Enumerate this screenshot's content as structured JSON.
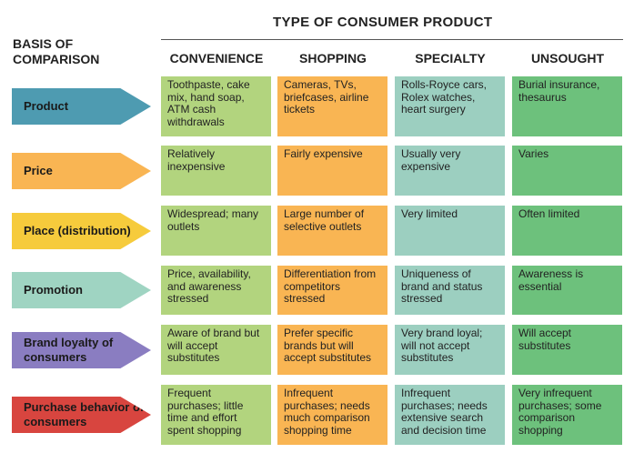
{
  "title": "TYPE OF CONSUMER PRODUCT",
  "basis_label": "BASIS OF COMPARISON",
  "columns": [
    {
      "label": "CONVENIENCE",
      "color": "#b2d47e"
    },
    {
      "label": "SHOPPING",
      "color": "#f9b553"
    },
    {
      "label": "SPECIALTY",
      "color": "#9ccfc0"
    },
    {
      "label": "UNSOUGHT",
      "color": "#6dc17c"
    }
  ],
  "rows": [
    {
      "label": "Product",
      "color": "#4e9bb1",
      "text_color": "#1a1a1a",
      "cells": [
        "Toothpaste, cake mix, hand soap, ATM cash withdrawals",
        "Cameras, TVs, briefcases, airline tickets",
        "Rolls-Royce cars, Rolex watches, heart surgery",
        "Burial insurance, thesaurus"
      ]
    },
    {
      "label": "Price",
      "color": "#f9b553",
      "text_color": "#1a1a1a",
      "cells": [
        "Relatively inexpensive",
        "Fairly expensive",
        "Usually very expensive",
        "Varies"
      ]
    },
    {
      "label": "Place (distribution)",
      "color": "#f6cb3c",
      "text_color": "#1a1a1a",
      "cells": [
        "Widespread; many outlets",
        "Large number of selective outlets",
        "Very limited",
        "Often limited"
      ]
    },
    {
      "label": "Promotion",
      "color": "#9fd4c2",
      "text_color": "#1a1a1a",
      "cells": [
        "Price, availability, and awareness stressed",
        "Differentiation from competitors stressed",
        "Uniqueness of brand and status stressed",
        "Awareness is essential"
      ]
    },
    {
      "label": "Brand loyalty of consumers",
      "color": "#8a7dc1",
      "text_color": "#1a1a1a",
      "cells": [
        "Aware of brand but will accept substitutes",
        "Prefer specific brands but will accept substitutes",
        "Very brand loyal; will not accept substitutes",
        "Will accept substitutes"
      ]
    },
    {
      "label": "Purchase behavior of consumers",
      "color": "#d8453f",
      "text_color": "#1a1a1a",
      "cells": [
        "Frequent purchases; little time and effort spent shopping",
        "Infrequent purchases; needs much comparison shopping time",
        "Infrequent purchases; needs extensive search and decision time",
        "Very infrequent purchases; some comparison shopping"
      ]
    }
  ]
}
